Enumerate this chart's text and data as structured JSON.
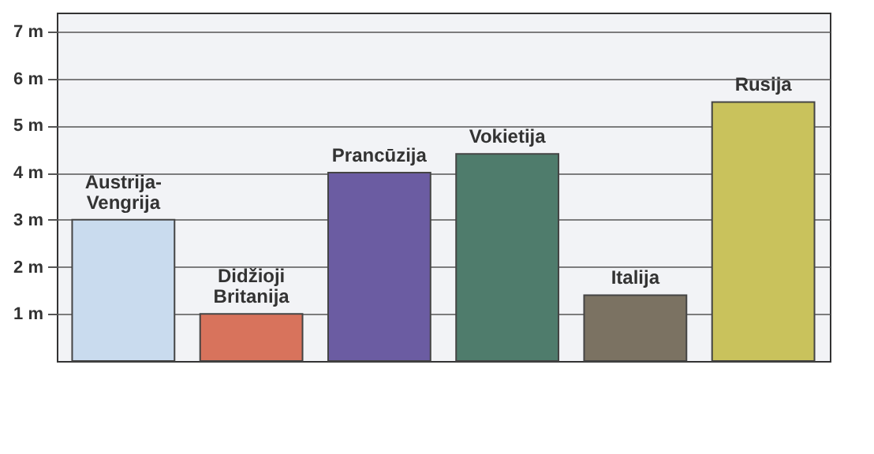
{
  "chart_data": {
    "type": "bar",
    "categories": [
      "Austrija-Vengrija",
      "Didžioji Britanija",
      "Prancūzija",
      "Vokietija",
      "Italija",
      "Rusija"
    ],
    "values": [
      3,
      1,
      4,
      4.4,
      1.4,
      5.5
    ],
    "colors": [
      "#c9dbee",
      "#d8735c",
      "#6b5ca2",
      "#4f7c6c",
      "#7b7262",
      "#c9c25c"
    ],
    "ylim": [
      0,
      7.4
    ],
    "yticks": [
      {
        "value": 1,
        "label": "1 m"
      },
      {
        "value": 2,
        "label": "2 m"
      },
      {
        "value": 3,
        "label": "3 m"
      },
      {
        "value": 4,
        "label": "4 m"
      },
      {
        "value": 5,
        "label": "5 m"
      },
      {
        "value": 6,
        "label": "6 m"
      },
      {
        "value": 7,
        "label": "7 m"
      }
    ],
    "grid": "y"
  }
}
